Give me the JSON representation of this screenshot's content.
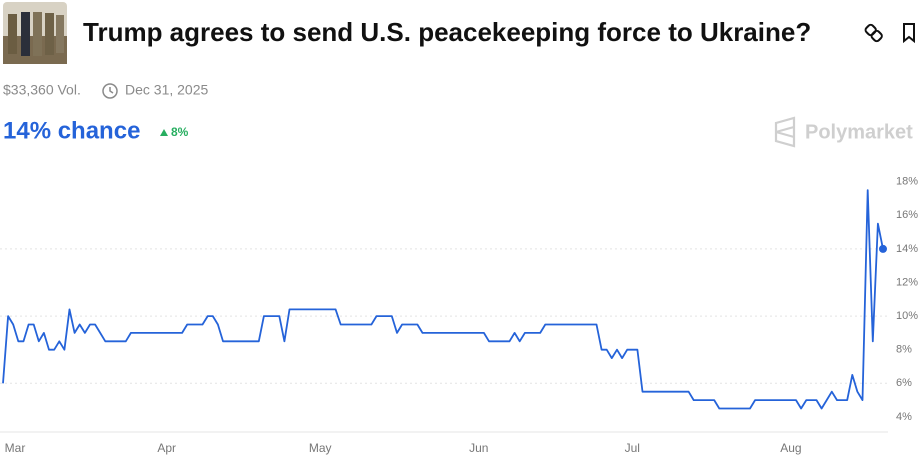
{
  "header": {
    "title": "Trump agrees to send U.S. peacekeeping force to Ukraine?",
    "volume": "$33,360 Vol.",
    "end_date": "Dec 31, 2025",
    "chance": "14% chance",
    "change": "8%",
    "brand": "Polymarket"
  },
  "chart_data": {
    "type": "line",
    "color": "#2563d9",
    "categories": [
      null,
      "Mar",
      null,
      null,
      null,
      null,
      null,
      null,
      null,
      null,
      null,
      null,
      null,
      null,
      null,
      null,
      null,
      null,
      null,
      null,
      null,
      null,
      null,
      null,
      null,
      null,
      null,
      null,
      null,
      null,
      null,
      null,
      "Apr",
      null,
      null,
      null,
      null,
      null,
      null,
      null,
      null,
      null,
      null,
      null,
      null,
      null,
      null,
      null,
      null,
      null,
      null,
      null,
      null,
      null,
      null,
      null,
      null,
      null,
      null,
      null,
      null,
      null,
      "May",
      null,
      null,
      null,
      null,
      null,
      null,
      null,
      null,
      null,
      null,
      null,
      null,
      null,
      null,
      null,
      null,
      null,
      null,
      null,
      null,
      null,
      null,
      null,
      null,
      null,
      null,
      null,
      null,
      null,
      null,
      "Jun",
      null,
      null,
      null,
      null,
      null,
      null,
      null,
      null,
      null,
      null,
      null,
      null,
      null,
      null,
      null,
      null,
      null,
      null,
      null,
      null,
      null,
      null,
      null,
      null,
      null,
      null,
      null,
      null,
      null,
      "Jul",
      null,
      null,
      null,
      null,
      null,
      null,
      null,
      null,
      null,
      null,
      null,
      null,
      null,
      null,
      null,
      null,
      null,
      null,
      null,
      null,
      null,
      null,
      null,
      null,
      null,
      null,
      null,
      null,
      null,
      null,
      "Aug",
      null,
      null,
      null,
      null,
      null,
      null,
      null,
      null,
      null,
      null,
      null,
      null,
      null,
      null,
      null,
      null,
      null,
      null
    ],
    "values": [
      6,
      10,
      9.5,
      8.5,
      8.5,
      9.5,
      9.5,
      8.5,
      9,
      8,
      8,
      8.5,
      8,
      10.4,
      9,
      9.5,
      9,
      9.5,
      9.5,
      9,
      8.5,
      8.5,
      8.5,
      8.5,
      8.5,
      9,
      9,
      9,
      9,
      9,
      9,
      9,
      9,
      9,
      9,
      9,
      9.5,
      9.5,
      9.5,
      9.5,
      10,
      10,
      9.5,
      8.5,
      8.5,
      8.5,
      8.5,
      8.5,
      8.5,
      8.5,
      8.5,
      10,
      10,
      10,
      10,
      8.5,
      10.4,
      10.4,
      10.4,
      10.4,
      10.4,
      10.4,
      10.4,
      10.4,
      10.4,
      10.4,
      9.5,
      9.5,
      9.5,
      9.5,
      9.5,
      9.5,
      9.5,
      10,
      10,
      10,
      10,
      9,
      9.5,
      9.5,
      9.5,
      9.5,
      9,
      9,
      9,
      9,
      9,
      9,
      9,
      9,
      9,
      9,
      9,
      9,
      9,
      8.5,
      8.5,
      8.5,
      8.5,
      8.5,
      9,
      8.5,
      9,
      9,
      9,
      9,
      9.5,
      9.5,
      9.5,
      9.5,
      9.5,
      9.5,
      9.5,
      9.5,
      9.5,
      9.5,
      9.5,
      8,
      8,
      7.5,
      8,
      7.5,
      8,
      8,
      8,
      5.5,
      5.5,
      5.5,
      5.5,
      5.5,
      5.5,
      5.5,
      5.5,
      5.5,
      5.5,
      5,
      5,
      5,
      5,
      5,
      4.5,
      4.5,
      4.5,
      4.5,
      4.5,
      4.5,
      4.5,
      5,
      5,
      5,
      5,
      5,
      5,
      5,
      5,
      5,
      4.5,
      5,
      5,
      5,
      4.5,
      5,
      5.5,
      5,
      5,
      5,
      6.5,
      5.5,
      5,
      17.5,
      8.5,
      15.5,
      14
    ],
    "ylim": [
      3.1,
      18.4
    ],
    "yticks": [
      {
        "value": 4,
        "label": "4%"
      },
      {
        "value": 6,
        "label": "6%"
      },
      {
        "value": 8,
        "label": "8%"
      },
      {
        "value": 10,
        "label": "10%"
      },
      {
        "value": 12,
        "label": "12%"
      },
      {
        "value": 14,
        "label": "14%"
      },
      {
        "value": 16,
        "label": "16%"
      },
      {
        "value": 18,
        "label": "18%"
      }
    ],
    "grid": true
  }
}
